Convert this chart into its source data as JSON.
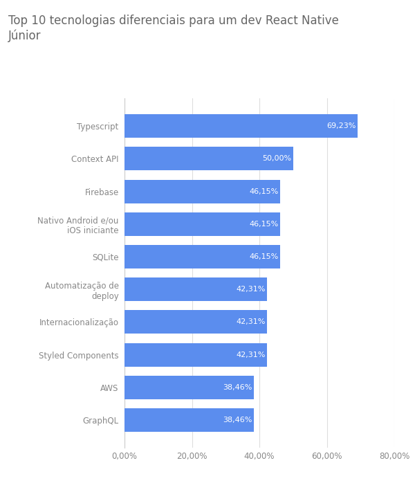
{
  "title": "Top 10 tecnologias diferenciais para um dev React Native\nJúnior",
  "categories": [
    "GraphQL",
    "AWS",
    "Styled Components",
    "Internacionalização",
    "Automatização de\ndeploy",
    "SQLite",
    "Nativo Android e/ou\niOS iniciante",
    "Firebase",
    "Context API",
    "Typescript"
  ],
  "values": [
    38.46,
    38.46,
    42.31,
    42.31,
    42.31,
    46.15,
    46.15,
    46.15,
    50.0,
    69.23
  ],
  "bar_color": "#5b8dee",
  "label_color": "#ffffff",
  "title_color": "#666666",
  "axis_label_color": "#888888",
  "background_color": "#ffffff",
  "xlim": [
    0,
    80
  ],
  "xticks": [
    0,
    20,
    40,
    60,
    80
  ],
  "xtick_labels": [
    "0,00%",
    "20,00%",
    "40,00%",
    "60,00%",
    "80,00%"
  ],
  "title_fontsize": 12,
  "bar_label_fontsize": 8,
  "ytick_fontsize": 8.5,
  "xtick_fontsize": 8.5,
  "bar_height": 0.72
}
